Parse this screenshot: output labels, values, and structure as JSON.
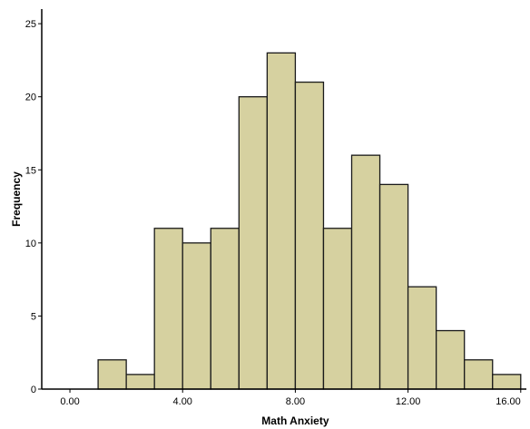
{
  "chart_data": {
    "type": "bar",
    "xlabel": "Math Anxiety",
    "ylabel": "Frequency",
    "bin_width": 1,
    "bins": [
      {
        "start": 1,
        "end": 2,
        "count": 2
      },
      {
        "start": 2,
        "end": 3,
        "count": 1
      },
      {
        "start": 3,
        "end": 4,
        "count": 11
      },
      {
        "start": 4,
        "end": 5,
        "count": 10
      },
      {
        "start": 5,
        "end": 6,
        "count": 11
      },
      {
        "start": 6,
        "end": 7,
        "count": 20
      },
      {
        "start": 7,
        "end": 8,
        "count": 23
      },
      {
        "start": 8,
        "end": 9,
        "count": 21
      },
      {
        "start": 9,
        "end": 10,
        "count": 11
      },
      {
        "start": 10,
        "end": 11,
        "count": 16
      },
      {
        "start": 11,
        "end": 12,
        "count": 14
      },
      {
        "start": 12,
        "end": 13,
        "count": 7
      },
      {
        "start": 13,
        "end": 14,
        "count": 4
      },
      {
        "start": 14,
        "end": 15,
        "count": 2
      },
      {
        "start": 15,
        "end": 16,
        "count": 1
      }
    ],
    "xlim": [
      -1,
      16.2
    ],
    "ylim": [
      0,
      26
    ],
    "x_ticks": [
      0,
      4,
      8,
      12,
      16
    ],
    "x_tick_labels": [
      "0.00",
      "4.00",
      "8.00",
      "12.00",
      "16.00"
    ],
    "y_ticks": [
      0,
      5,
      10,
      15,
      20,
      25
    ],
    "y_tick_labels": [
      "0",
      "5",
      "10",
      "15",
      "20",
      "25"
    ],
    "grid": false,
    "colors": {
      "bar_fill": "#D6D1A0",
      "bar_stroke": "#1a1a1a",
      "axis": "#000000"
    }
  }
}
